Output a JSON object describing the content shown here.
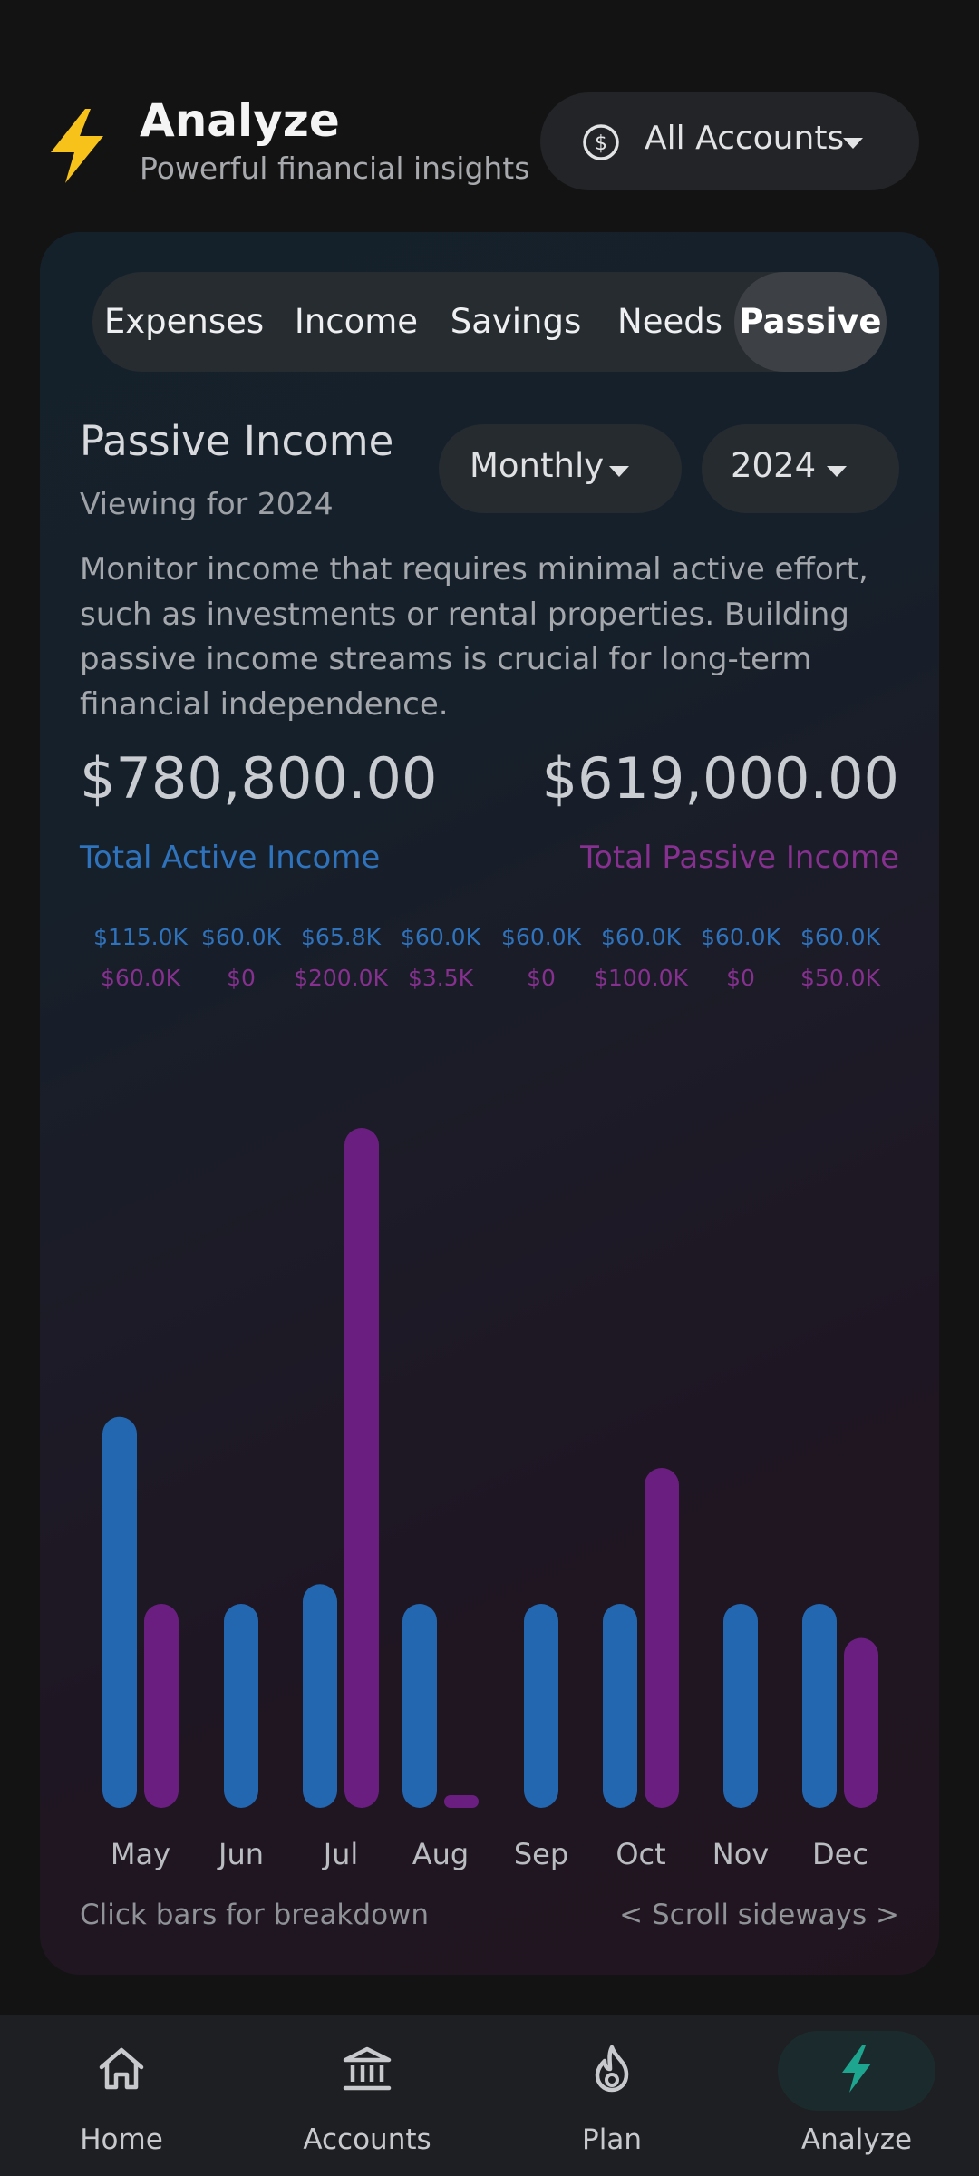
{
  "header": {
    "title": "Analyze",
    "subtitle": "Powerful financial insights",
    "account_selector": "All Accounts"
  },
  "tabs": [
    {
      "label": "Expenses",
      "active": false
    },
    {
      "label": "Income",
      "active": false
    },
    {
      "label": "Savings",
      "active": false
    },
    {
      "label": "Needs",
      "active": false
    },
    {
      "label": "Passive",
      "active": true
    }
  ],
  "section": {
    "title": "Passive Income",
    "subtitle": "Viewing for 2024",
    "period": "Monthly",
    "year": "2024",
    "description": "Monitor income that requires minimal active effort, such as investments or rental properties. Building passive income streams is crucial for long-term financial independence."
  },
  "totals": {
    "active_value": "$780,800.00",
    "active_label": "Total Active Income",
    "passive_value": "$619,000.00",
    "passive_label": "Total Passive Income"
  },
  "colors": {
    "active": "#2267b0",
    "passive": "#6a1f80",
    "active_text": "#2f73bd",
    "passive_text": "#86308f",
    "accent": "#1ea58f"
  },
  "chart_data": {
    "type": "bar",
    "categories": [
      "May",
      "Jun",
      "Jul",
      "Aug",
      "Sep",
      "Oct",
      "Nov",
      "Dec"
    ],
    "series": [
      {
        "name": "Total Active Income",
        "values": [
          115000,
          60000,
          65800,
          60000,
          60000,
          60000,
          60000,
          60000
        ]
      },
      {
        "name": "Total Passive Income",
        "values": [
          60000,
          0,
          200000,
          3500,
          0,
          100000,
          0,
          50000
        ]
      }
    ],
    "active_labels": [
      "$115.0K",
      "$60.0K",
      "$65.8K",
      "$60.0K",
      "$60.0K",
      "$60.0K",
      "$60.0K",
      "$60.0K"
    ],
    "passive_labels": [
      "$60.0K",
      "$0",
      "$200.0K",
      "$3.5K",
      "$0",
      "$100.0K",
      "$0",
      "$50.0K"
    ],
    "ylim": [
      0,
      200000
    ]
  },
  "hints": {
    "left": "Click bars for breakdown",
    "right": "< Scroll sideways >"
  },
  "nav": [
    {
      "label": "Home",
      "icon": "home-icon",
      "active": false
    },
    {
      "label": "Accounts",
      "icon": "bank-icon",
      "active": false
    },
    {
      "label": "Plan",
      "icon": "flame-icon",
      "active": false
    },
    {
      "label": "Analyze",
      "icon": "bolt-icon",
      "active": true
    }
  ]
}
